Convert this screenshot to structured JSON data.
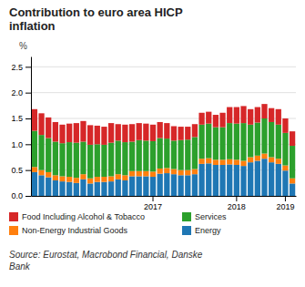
{
  "chart_data": {
    "type": "bar",
    "stacked": true,
    "grid": true,
    "title": "Contribution to euro area HICP\ninflation",
    "ylabel": "%",
    "annotations": [
      "Source: Eurostat, Macrobond Financial, Danske\nBank"
    ],
    "categories": [
      null,
      null,
      null,
      null,
      null,
      null,
      null,
      null,
      null,
      null,
      null,
      null,
      null,
      null,
      null,
      null,
      null,
      "2017",
      null,
      null,
      null,
      null,
      null,
      null,
      null,
      null,
      null,
      null,
      null,
      "2018",
      null,
      null,
      null,
      null,
      null,
      null,
      "2019",
      null
    ],
    "ylim": [
      0.0,
      2.7
    ],
    "yticks": [
      {
        "value": 0.0,
        "label": "0.0"
      },
      0.5,
      {
        "value": 1.0,
        "label": "1.0"
      },
      1.5,
      {
        "value": 2.0,
        "label": "2.0"
      },
      2.5
    ],
    "series": [
      {
        "name": "Energy",
        "values": [
          0.46,
          0.4,
          0.36,
          0.3,
          0.28,
          0.27,
          0.25,
          0.32,
          0.24,
          0.27,
          0.27,
          0.28,
          0.32,
          0.3,
          0.38,
          0.38,
          0.38,
          0.37,
          0.43,
          0.44,
          0.42,
          0.4,
          0.4,
          0.42,
          0.62,
          0.63,
          0.6,
          0.6,
          0.61,
          0.6,
          0.58,
          0.65,
          0.68,
          0.72,
          0.65,
          0.62,
          0.49,
          0.24
        ]
      },
      {
        "name": "Non-Energy Industrial Goods",
        "values": [
          0.1,
          0.1,
          0.1,
          0.1,
          0.1,
          0.1,
          0.1,
          0.1,
          0.1,
          0.1,
          0.1,
          0.1,
          0.1,
          0.1,
          0.1,
          0.1,
          0.1,
          0.1,
          0.1,
          0.1,
          0.1,
          0.1,
          0.1,
          0.1,
          0.1,
          0.1,
          0.1,
          0.1,
          0.1,
          0.1,
          0.1,
          0.1,
          0.1,
          0.1,
          0.1,
          0.1,
          0.1,
          0.1
        ]
      },
      {
        "name": "Services",
        "values": [
          0.7,
          0.68,
          0.66,
          0.65,
          0.64,
          0.67,
          0.68,
          0.63,
          0.65,
          0.63,
          0.62,
          0.65,
          0.65,
          0.64,
          0.57,
          0.6,
          0.59,
          0.59,
          0.59,
          0.57,
          0.55,
          0.58,
          0.59,
          0.62,
          0.66,
          0.67,
          0.63,
          0.63,
          0.7,
          0.7,
          0.73,
          0.63,
          0.64,
          0.68,
          0.68,
          0.66,
          0.63,
          0.63
        ]
      },
      {
        "name": "Food Including Alcohol & Tobacco",
        "values": [
          0.42,
          0.42,
          0.4,
          0.38,
          0.36,
          0.36,
          0.38,
          0.4,
          0.38,
          0.36,
          0.35,
          0.38,
          0.32,
          0.34,
          0.34,
          0.33,
          0.33,
          0.32,
          0.31,
          0.3,
          0.28,
          0.26,
          0.25,
          0.25,
          0.23,
          0.23,
          0.24,
          0.28,
          0.31,
          0.32,
          0.33,
          0.3,
          0.3,
          0.28,
          0.27,
          0.3,
          0.28,
          0.28
        ]
      }
    ]
  }
}
